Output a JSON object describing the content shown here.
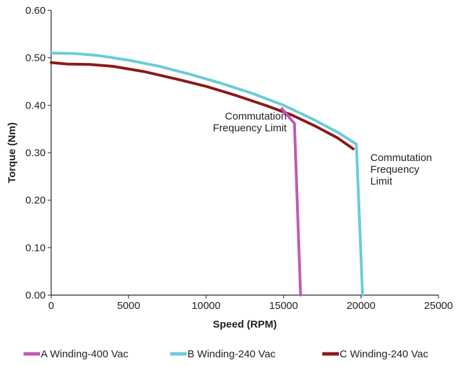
{
  "chart_data": {
    "type": "line",
    "xlabel": "Speed (RPM)",
    "ylabel": "Torque (Nm)",
    "xlim": [
      0,
      25000
    ],
    "ylim": [
      0,
      0.6
    ],
    "x_ticks": [
      "0",
      "5000",
      "10000",
      "15000",
      "20000",
      "25000"
    ],
    "y_ticks": [
      "0.00",
      "0.10",
      "0.20",
      "0.30",
      "0.40",
      "0.50",
      "0.60"
    ],
    "grid": false,
    "legend_position": "bottom",
    "annotations": [
      {
        "lines": [
          "Commutation",
          "Frequency Limit"
        ],
        "x": 15200,
        "y": 0.345,
        "align": "right"
      },
      {
        "lines": [
          "Commutation",
          "Frequency",
          "Limit"
        ],
        "x": 20600,
        "y": 0.3,
        "align": "left"
      }
    ],
    "series": [
      {
        "name": "A Winding-400 Vac",
        "color": "#c05ab0",
        "points": [
          [
            14900,
            0.393
          ],
          [
            15350,
            0.375
          ],
          [
            15700,
            0.362
          ],
          [
            16100,
            0.0
          ]
        ]
      },
      {
        "name": "B Winding-240 Vac",
        "color": "#6ccbd6",
        "points": [
          [
            0,
            0.51
          ],
          [
            1500,
            0.509
          ],
          [
            3000,
            0.505
          ],
          [
            5000,
            0.495
          ],
          [
            7000,
            0.482
          ],
          [
            9000,
            0.465
          ],
          [
            11000,
            0.446
          ],
          [
            13000,
            0.425
          ],
          [
            15000,
            0.4
          ],
          [
            17000,
            0.369
          ],
          [
            18500,
            0.343
          ],
          [
            19700,
            0.318
          ],
          [
            20100,
            0.0
          ]
        ]
      },
      {
        "name": "C Winding-240 Vac",
        "color": "#8b1a1a",
        "points": [
          [
            0,
            0.49
          ],
          [
            1000,
            0.487
          ],
          [
            2500,
            0.486
          ],
          [
            4000,
            0.482
          ],
          [
            6000,
            0.471
          ],
          [
            8000,
            0.456
          ],
          [
            10000,
            0.44
          ],
          [
            12000,
            0.42
          ],
          [
            14000,
            0.398
          ],
          [
            15500,
            0.38
          ],
          [
            17000,
            0.357
          ],
          [
            18500,
            0.331
          ],
          [
            19500,
            0.308
          ]
        ]
      }
    ]
  }
}
